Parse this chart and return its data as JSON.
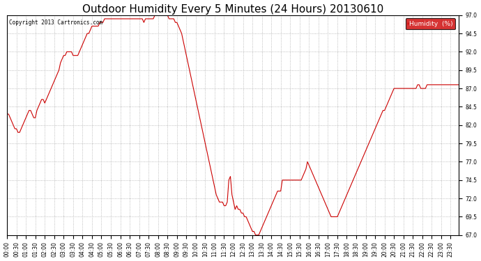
{
  "title": "Outdoor Humidity Every 5 Minutes (24 Hours) 20130610",
  "copyright": "Copyright 2013 Cartronics.com",
  "legend_label": "Humidity  (%)",
  "legend_bg": "#cc0000",
  "legend_text_color": "#ffffff",
  "line_color": "#cc0000",
  "bg_color": "#ffffff",
  "grid_color": "#aaaaaa",
  "ylim": [
    67.0,
    97.0
  ],
  "yticks": [
    67.0,
    69.5,
    72.0,
    74.5,
    77.0,
    79.5,
    82.0,
    84.5,
    87.0,
    89.5,
    92.0,
    94.5,
    97.0
  ],
  "title_fontsize": 11,
  "tick_fontsize": 5.5,
  "xtick_step": 6,
  "humidity_values": [
    83.5,
    83.5,
    83.0,
    82.5,
    82.0,
    81.5,
    81.5,
    81.0,
    81.0,
    81.5,
    82.0,
    82.5,
    83.0,
    83.5,
    84.0,
    84.0,
    83.5,
    83.0,
    83.0,
    84.0,
    84.5,
    85.0,
    85.5,
    85.5,
    85.0,
    85.5,
    86.0,
    86.5,
    87.0,
    87.5,
    88.0,
    88.5,
    89.0,
    89.5,
    90.5,
    91.0,
    91.5,
    91.5,
    92.0,
    92.0,
    92.0,
    92.0,
    91.5,
    91.5,
    91.5,
    91.5,
    92.0,
    92.5,
    93.0,
    93.5,
    94.0,
    94.5,
    94.5,
    95.0,
    95.5,
    95.5,
    95.5,
    95.5,
    95.5,
    96.0,
    96.0,
    96.0,
    96.5,
    96.5,
    96.5,
    96.5,
    96.5,
    96.5,
    96.5,
    96.5,
    96.5,
    96.5,
    96.5,
    96.5,
    96.5,
    96.5,
    96.5,
    96.5,
    96.5,
    96.5,
    96.5,
    96.5,
    96.5,
    96.5,
    96.5,
    96.5,
    96.5,
    96.0,
    96.5,
    96.5,
    96.5,
    96.5,
    96.5,
    96.5,
    97.0,
    97.0,
    97.0,
    97.0,
    97.0,
    97.0,
    97.0,
    97.0,
    97.0,
    96.5,
    96.5,
    96.5,
    96.5,
    96.0,
    96.0,
    95.5,
    95.0,
    94.5,
    93.5,
    92.5,
    91.5,
    90.5,
    89.5,
    88.5,
    87.5,
    86.5,
    85.5,
    84.5,
    83.5,
    82.5,
    81.5,
    80.5,
    79.5,
    78.5,
    77.5,
    76.5,
    75.5,
    74.5,
    73.5,
    72.5,
    72.0,
    71.5,
    71.5,
    71.5,
    71.0,
    71.0,
    71.5,
    74.5,
    75.0,
    72.5,
    71.5,
    70.5,
    71.0,
    70.5,
    70.5,
    70.0,
    70.0,
    69.5,
    69.5,
    69.0,
    68.5,
    68.0,
    67.5,
    67.5,
    67.0,
    67.0,
    67.0,
    67.5,
    68.0,
    68.5,
    69.0,
    69.5,
    70.0,
    70.5,
    71.0,
    71.5,
    72.0,
    72.5,
    73.0,
    73.0,
    73.0,
    74.5,
    74.5,
    74.5,
    74.5,
    74.5,
    74.5,
    74.5,
    74.5,
    74.5,
    74.5,
    74.5,
    74.5,
    74.5,
    75.0,
    75.5,
    76.0,
    77.0,
    76.5,
    76.0,
    75.5,
    75.0,
    74.5,
    74.0,
    73.5,
    73.0,
    72.5,
    72.0,
    71.5,
    71.0,
    70.5,
    70.0,
    69.5,
    69.5,
    69.5,
    69.5,
    69.5,
    70.0,
    70.5,
    71.0,
    71.5,
    72.0,
    72.5,
    73.0,
    73.5,
    74.0,
    74.5,
    75.0,
    75.5,
    76.0,
    76.5,
    77.0,
    77.5,
    78.0,
    78.5,
    79.0,
    79.5,
    80.0,
    80.5,
    81.0,
    81.5,
    82.0,
    82.5,
    83.0,
    83.5,
    84.0,
    84.0,
    84.5,
    85.0,
    85.5,
    86.0,
    86.5,
    87.0,
    87.0,
    87.0,
    87.0,
    87.0,
    87.0,
    87.0,
    87.0,
    87.0,
    87.0,
    87.0,
    87.0,
    87.0,
    87.0,
    87.0,
    87.5,
    87.5,
    87.0,
    87.0,
    87.0,
    87.0,
    87.5,
    87.5,
    87.5,
    87.5,
    87.5,
    87.5,
    87.5,
    87.5,
    87.5,
    87.5,
    87.5,
    87.5,
    87.5,
    87.5,
    87.5,
    87.5,
    87.5,
    87.5,
    87.5,
    87.5,
    87.5,
    87.5,
    87.5,
    87.5,
    87.5,
    87.5,
    87.5,
    87.5,
    87.5,
    87.5,
    87.5,
    87.5,
    87.5
  ]
}
